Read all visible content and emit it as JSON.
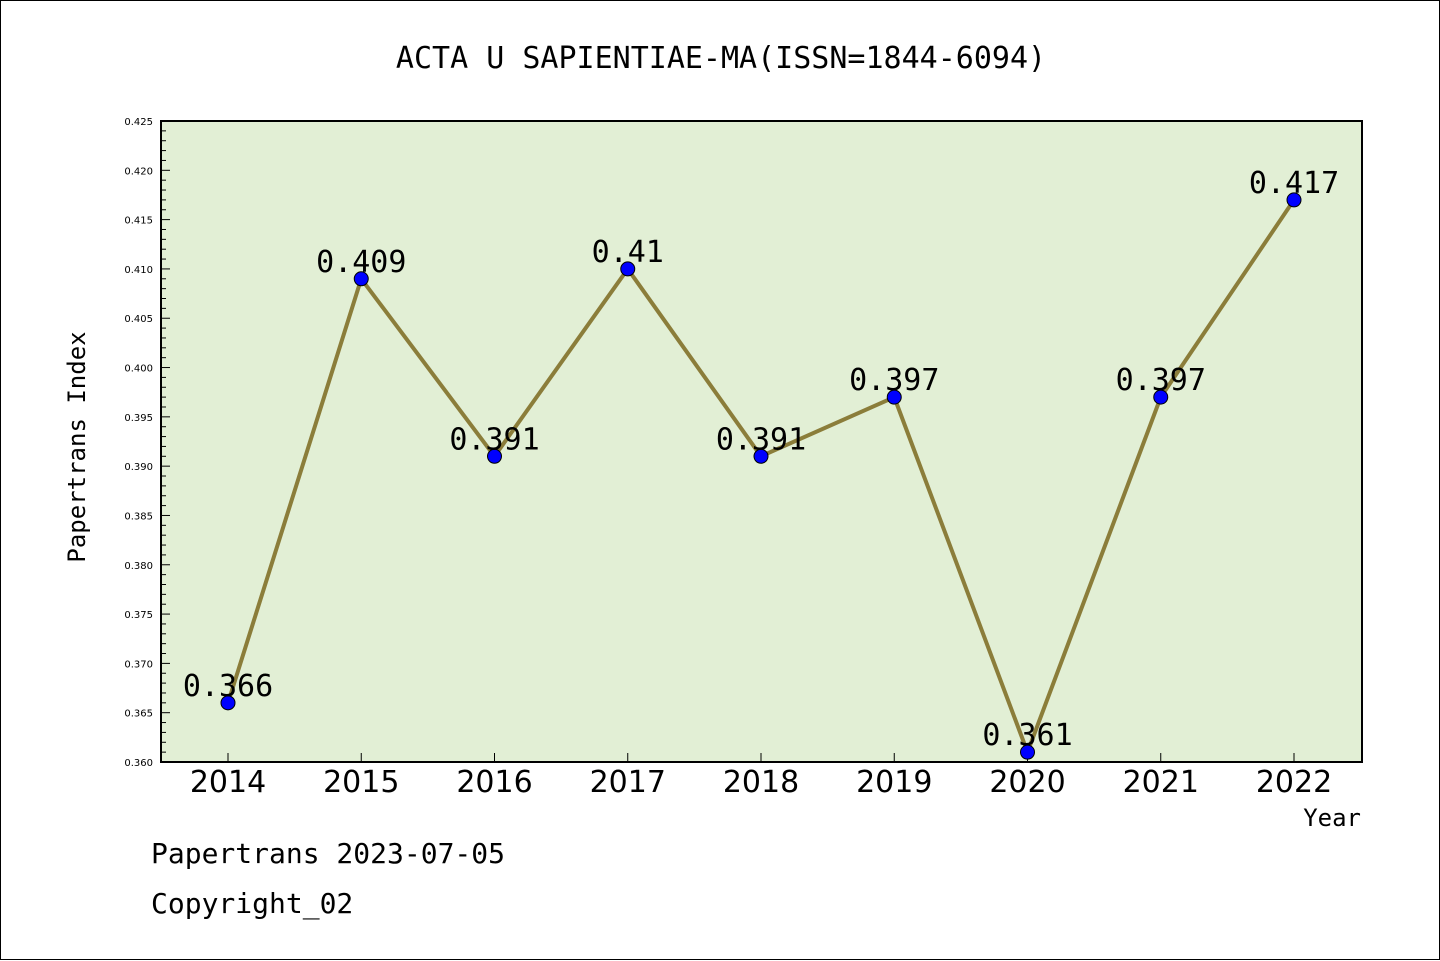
{
  "chart_data": {
    "type": "line",
    "title": "ACTA U SAPIENTIAE-MA(ISSN=1844-6094)",
    "xlabel": "Year",
    "ylabel": "Papertrans Index",
    "categories": [
      "2014",
      "2015",
      "2016",
      "2017",
      "2018",
      "2019",
      "2020",
      "2021",
      "2022"
    ],
    "values": [
      0.366,
      0.409,
      0.391,
      0.41,
      0.391,
      0.397,
      0.361,
      0.397,
      0.417
    ],
    "data_labels": [
      "0.366",
      "0.409",
      "0.391",
      "0.41",
      "0.391",
      "0.397",
      "0.361",
      "0.397",
      "0.417"
    ],
    "ylim": [
      0.36,
      0.425
    ],
    "yticks": [
      "0.360",
      "0.365",
      "0.370",
      "0.375",
      "0.380",
      "0.385",
      "0.390",
      "0.395",
      "0.400",
      "0.405",
      "0.410",
      "0.415",
      "0.420",
      "0.425"
    ],
    "grid": false,
    "legend": "none",
    "colors": {
      "plot_background": "#e2efd5",
      "line": "#8b7d3a",
      "marker": "#0000ff"
    }
  },
  "footer": {
    "line1": "Papertrans 2023-07-05",
    "line2": "Copyright_02"
  }
}
